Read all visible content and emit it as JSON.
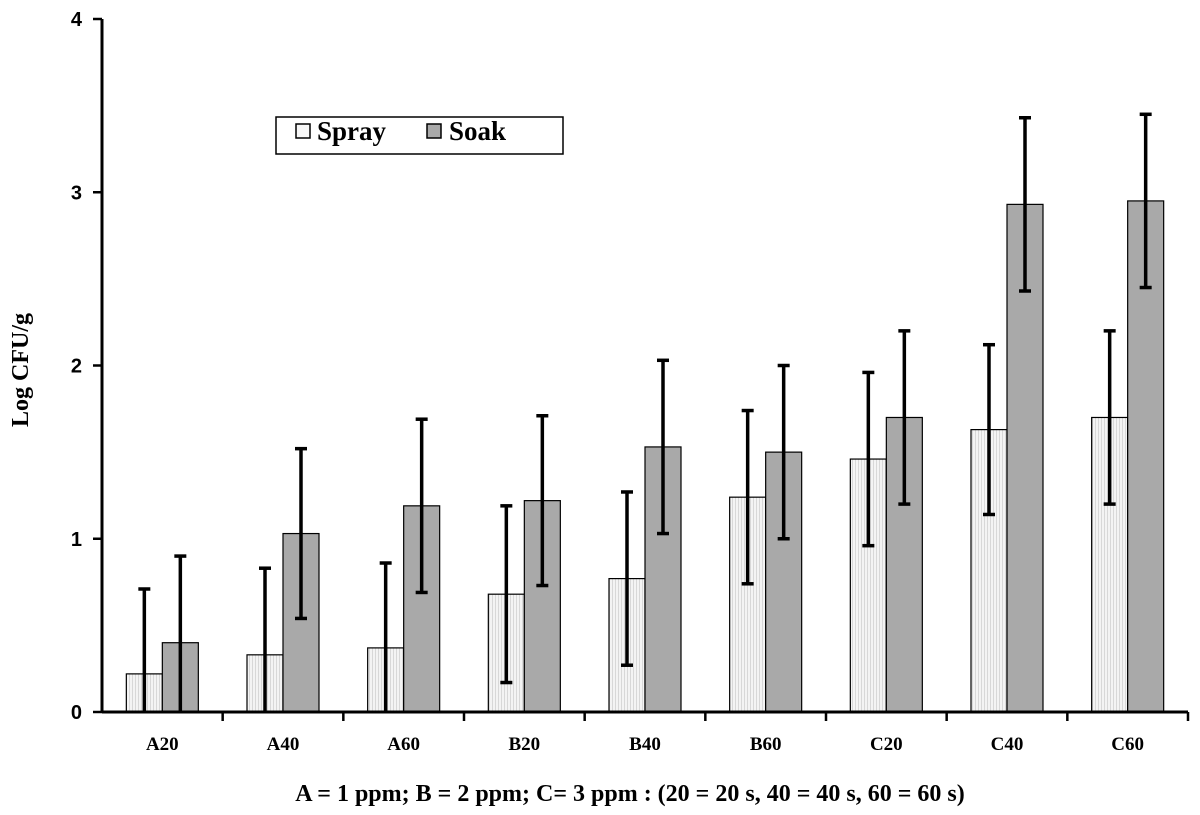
{
  "chart_data": {
    "type": "bar",
    "categories": [
      "A20",
      "A40",
      "A60",
      "B20",
      "B40",
      "B60",
      "C20",
      "C40",
      "C60"
    ],
    "series": [
      {
        "name": "Spray",
        "color": "#efefef",
        "values": [
          0.22,
          0.33,
          0.37,
          0.68,
          0.77,
          1.24,
          1.46,
          1.63,
          1.7
        ],
        "error": [
          0.49,
          0.5,
          0.49,
          0.51,
          0.5,
          0.5,
          0.5,
          0.49,
          0.5
        ]
      },
      {
        "name": "Soak",
        "color": "#a9a9a9",
        "values": [
          0.4,
          1.03,
          1.19,
          1.22,
          1.53,
          1.5,
          1.7,
          2.93,
          2.95
        ],
        "error": [
          0.5,
          0.49,
          0.5,
          0.49,
          0.5,
          0.5,
          0.5,
          0.5,
          0.5
        ]
      }
    ],
    "ylabel": "Log CFU/g",
    "xlabel": "A = 1 ppm; B = 2 ppm; C= 3 ppm : (20 = 20 s, 40 = 40 s, 60 = 60 s)",
    "ylim": [
      0,
      4
    ],
    "yticks": [
      "0",
      "1",
      "2",
      "3",
      "4"
    ],
    "grid": false,
    "legend_position": "top-left"
  }
}
